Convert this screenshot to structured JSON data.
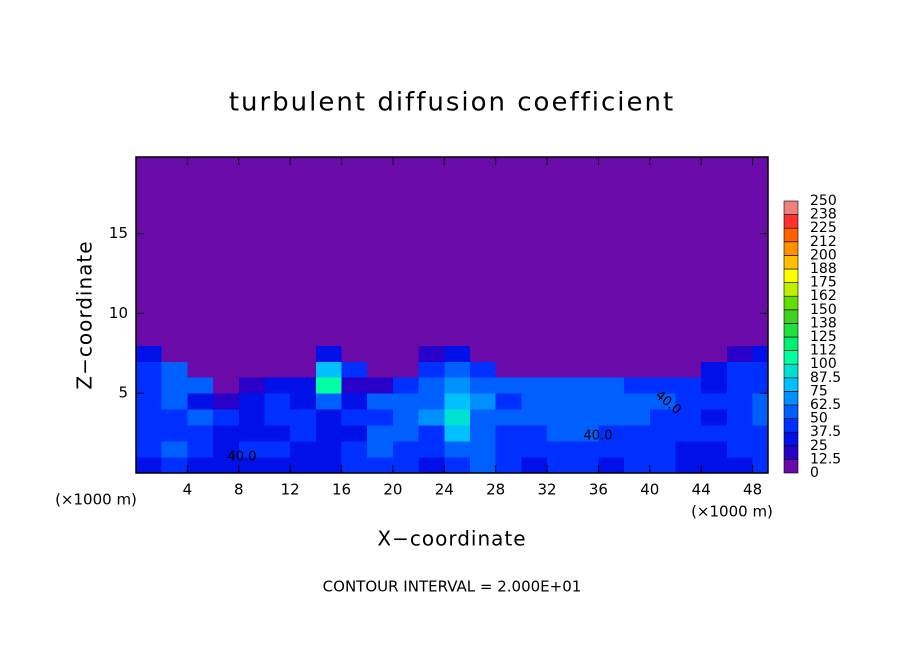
{
  "chart_data": {
    "type": "heatmap",
    "title": "turbulent diffusion coefficient",
    "x_label": "X−coordinate",
    "y_label": "Z−coordinate",
    "x_unit": "(×1000 m)",
    "y_unit": "(×1000 m)",
    "footnote": "CONTOUR INTERVAL = 2.000E+01",
    "contour_labels": [
      "40.0",
      "40.0",
      "40.0"
    ],
    "xlim": [
      0,
      49.2
    ],
    "ylim": [
      0,
      19.8
    ],
    "xticks": [
      4,
      8,
      12,
      16,
      20,
      24,
      28,
      32,
      36,
      40,
      44,
      48
    ],
    "yticks": [
      5,
      10,
      15
    ],
    "x_bins": [
      0,
      2,
      4,
      6,
      8,
      10,
      12,
      14,
      16,
      18,
      20,
      22,
      24,
      26,
      28,
      30,
      32,
      34,
      36,
      38,
      40,
      42,
      44,
      46,
      48,
      49.2
    ],
    "z_bins": [
      0,
      1,
      2,
      3,
      4,
      5,
      6,
      7,
      8,
      19.8
    ],
    "values": [
      [
        30,
        40,
        35,
        30,
        30,
        35,
        30,
        25,
        40,
        45,
        40,
        35,
        45,
        60,
        40,
        35,
        40,
        40,
        35,
        40,
        40,
        30,
        25,
        35,
        40
      ],
      [
        45,
        50,
        40,
        35,
        40,
        40,
        35,
        30,
        45,
        60,
        45,
        40,
        50,
        60,
        45,
        40,
        45,
        45,
        40,
        45,
        40,
        35,
        30,
        40,
        45
      ],
      [
        40,
        45,
        45,
        30,
        35,
        30,
        40,
        35,
        35,
        50,
        60,
        45,
        75,
        50,
        45,
        45,
        50,
        50,
        45,
        45,
        40,
        40,
        40,
        45,
        45
      ],
      [
        45,
        40,
        50,
        40,
        30,
        45,
        40,
        30,
        45,
        45,
        55,
        65,
        90,
        60,
        50,
        50,
        55,
        55,
        50,
        50,
        45,
        40,
        35,
        45,
        50
      ],
      [
        40,
        55,
        35,
        15,
        30,
        40,
        35,
        60,
        30,
        50,
        60,
        55,
        80,
        70,
        45,
        50,
        50,
        55,
        50,
        50,
        55,
        45,
        40,
        40,
        50
      ],
      [
        45,
        60,
        50,
        10,
        15,
        25,
        30,
        110,
        20,
        20,
        45,
        55,
        70,
        55,
        60,
        60,
        60,
        55,
        50,
        45,
        40,
        40,
        30,
        40,
        45
      ],
      [
        45,
        50,
        5,
        0,
        0,
        0,
        5,
        80,
        40,
        0,
        0,
        40,
        50,
        45,
        0,
        0,
        0,
        0,
        0,
        0,
        0,
        5,
        30,
        40,
        40
      ],
      [
        35,
        5,
        0,
        0,
        0,
        0,
        0,
        30,
        5,
        0,
        0,
        20,
        30,
        10,
        0,
        0,
        0,
        0,
        0,
        0,
        0,
        0,
        0,
        15,
        30
      ],
      [
        0,
        0,
        0,
        0,
        0,
        0,
        0,
        0,
        0,
        0,
        0,
        0,
        0,
        0,
        0,
        0,
        0,
        0,
        0,
        0,
        0,
        0,
        0,
        0,
        0
      ]
    ],
    "colorbar_ticks": [
      0,
      12.5,
      25,
      37.5,
      50,
      62.5,
      75,
      87.5,
      100,
      {
        "value": 112.5,
        "label": "112"
      },
      125,
      {
        "value": 137.5,
        "label": "138"
      },
      150,
      {
        "value": 162.5,
        "label": "162"
      },
      175,
      {
        "value": 187.5,
        "label": "188"
      },
      200,
      {
        "value": 212.5,
        "label": "212"
      },
      225,
      {
        "value": 237.5,
        "label": "238"
      },
      250
    ],
    "colors": [
      "#6a0aa8",
      "#2800c8",
      "#0010e8",
      "#0030ff",
      "#0060ff",
      "#0090ff",
      "#00c0ff",
      "#00e0d0",
      "#00ffa0",
      "#00f070",
      "#20e040",
      "#40d020",
      "#60e000",
      "#c0f000",
      "#ffff00",
      "#ffc000",
      "#ff9000",
      "#ff6000",
      "#ff3030",
      "#f08080"
    ]
  }
}
